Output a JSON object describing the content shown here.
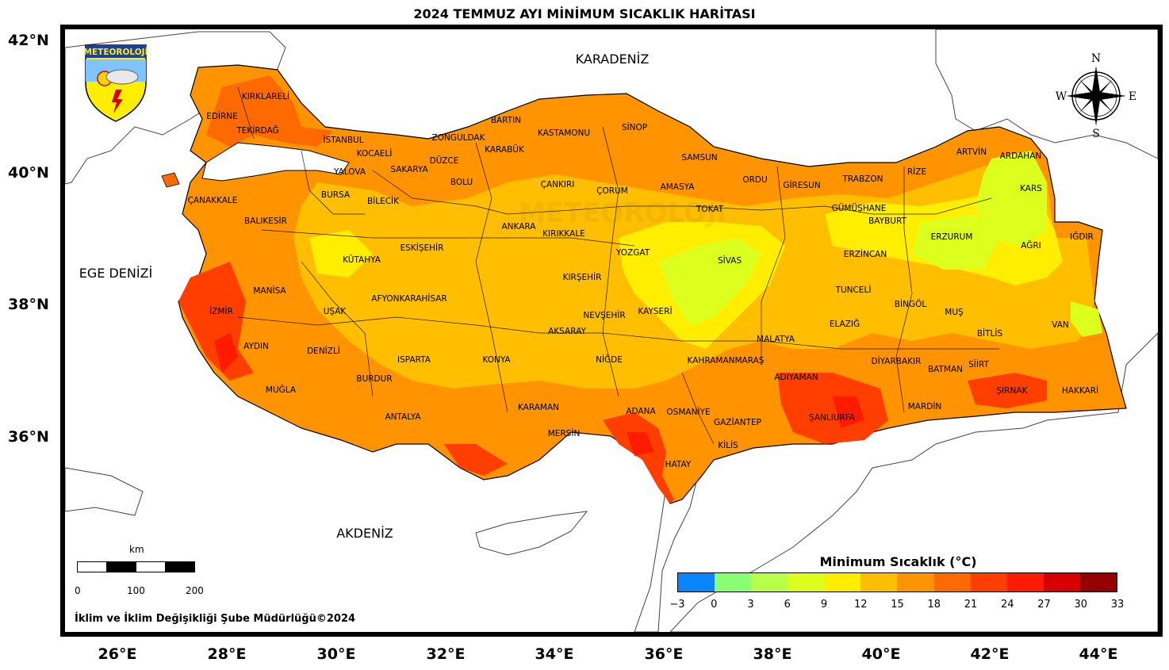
{
  "title": "2024 TEMMUZ AYI MİNİMUM SICAKLIK HARİTASI",
  "latitudes": [
    "42°N",
    "40°N",
    "38°N",
    "36°N"
  ],
  "longitudes": [
    "26°E",
    "28°E",
    "30°E",
    "32°E",
    "34°E",
    "36°E",
    "38°E",
    "40°E",
    "42°E",
    "44°E"
  ],
  "seas": {
    "black_sea": "KARADENİZ",
    "aegean": "EGE DENİZİ",
    "mediterranean": "AKDENİZ"
  },
  "logo": {
    "text": "METEOROLOJİ",
    "icon": "weather-logo-icon"
  },
  "compass": {
    "n": "N",
    "s": "S",
    "e": "E",
    "w": "W",
    "icon": "compass-rose-icon"
  },
  "legend": {
    "title": "Minimum Sıcaklık (°C)",
    "ticks": [
      "−3",
      "0",
      "3",
      "6",
      "9",
      "12",
      "15",
      "18",
      "21",
      "24",
      "27",
      "30",
      "33"
    ],
    "colors": [
      "#0a84ff",
      "#8bff73",
      "#b8ff4c",
      "#dcff1e",
      "#ffee00",
      "#ffbf00",
      "#ff9400",
      "#ff6a00",
      "#ff3e00",
      "#ff1a00",
      "#d60000",
      "#960000"
    ]
  },
  "scale_bar": {
    "unit": "km",
    "labels": [
      "0",
      "100",
      "200"
    ]
  },
  "footer": "İklim ve İklim Değişikliği Şube Müdürlüğü©2024",
  "provinces": [
    "KIRKLARELİ",
    "EDİRNE",
    "TEKİRDAĞ",
    "İSTANBUL",
    "KOCAELİ",
    "YALOVA",
    "SAKARYA",
    "DÜZCE",
    "ZONGULDAK",
    "BARTIN",
    "KARABÜK",
    "KASTAMONU",
    "SİNOP",
    "SAMSUN",
    "ORDU",
    "GİRESUN",
    "TRABZON",
    "RİZE",
    "ARTVİN",
    "ARDAHAN",
    "KARS",
    "IĞDIR",
    "ÇANAKKALE",
    "BURSA",
    "BİLECİK",
    "BOLU",
    "ÇANKIRI",
    "ÇORUM",
    "AMASYA",
    "TOKAT",
    "GÜMÜŞHANE",
    "BAYBURT",
    "ERZURUM",
    "AĞRI",
    "BALIKESİR",
    "KÜTAHYA",
    "ESKİŞEHİR",
    "ANKARA",
    "KIRIKKALE",
    "YOZGAT",
    "SİVAS",
    "ERZİNCAN",
    "MANİSA",
    "İZMİR",
    "UŞAK",
    "AFYONKARAHİSAR",
    "KIRŞEHİR",
    "KAYSERİ",
    "NEVŞEHİR",
    "TUNCELİ",
    "BİNGÖL",
    "MUŞ",
    "VAN",
    "AYDIN",
    "DENİZLİ",
    "ISPARTA",
    "KONYA",
    "AKSARAY",
    "NİĞDE",
    "ELAZIĞ",
    "MALATYA",
    "BİTLİS",
    "MUĞLA",
    "BURDUR",
    "KAHRAMANMARAŞ",
    "DİYARBAKIR",
    "BATMAN",
    "SİİRT",
    "ADIYAMAN",
    "ŞIRNAK",
    "HAKKARİ",
    "ANTALYA",
    "KARAMAN",
    "ADANA",
    "OSMANİYE",
    "GAZİANTEP",
    "ŞANLIURFA",
    "MARDİN",
    "MERSİN",
    "KİLİS",
    "HATAY"
  ]
}
